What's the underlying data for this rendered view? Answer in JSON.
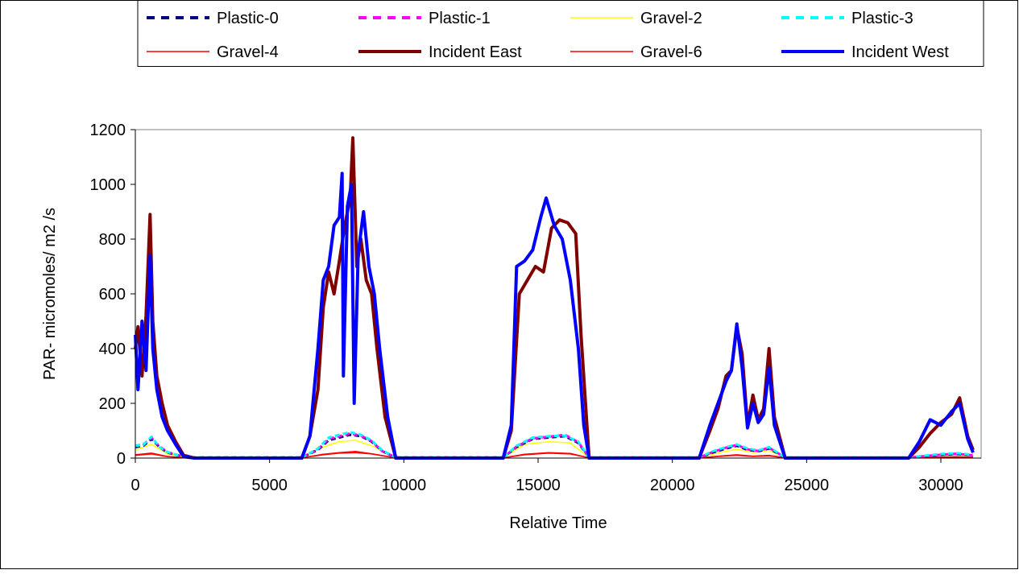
{
  "chart_data": {
    "type": "line",
    "title": "",
    "xlabel": "Relative Time",
    "ylabel": "PAR- micromoles/ m2 /s",
    "xlim": [
      0,
      31500
    ],
    "ylim": [
      0,
      1200
    ],
    "xticks": [
      0,
      5000,
      10000,
      15000,
      20000,
      25000,
      30000
    ],
    "yticks": [
      0,
      200,
      400,
      600,
      800,
      1000,
      1200
    ],
    "xtick_labels": [
      "0",
      "5000",
      "10000",
      "15000",
      "20000",
      "25000",
      "30000"
    ],
    "ytick_labels": [
      "0",
      "200",
      "400",
      "600",
      "800",
      "1000",
      "1200"
    ],
    "grid": false,
    "legend_position": "top",
    "series": [
      {
        "name": "Plastic-0",
        "color": "#000080",
        "style": "dashed",
        "x": [
          0,
          300,
          600,
          900,
          1200,
          1600,
          2000,
          6200,
          6800,
          7200,
          7600,
          8000,
          8400,
          8800,
          9200,
          9700,
          13700,
          14200,
          14800,
          15400,
          16000,
          16500,
          16900,
          21000,
          21500,
          22000,
          22400,
          22800,
          23200,
          23600,
          24200,
          28800,
          29500,
          30000,
          30600,
          31200
        ],
        "y": [
          40,
          45,
          70,
          40,
          20,
          10,
          2,
          2,
          30,
          65,
          75,
          85,
          80,
          60,
          25,
          2,
          2,
          40,
          70,
          75,
          80,
          55,
          2,
          2,
          20,
          35,
          45,
          30,
          25,
          35,
          2,
          2,
          8,
          12,
          15,
          10
        ]
      },
      {
        "name": "Plastic-1",
        "color": "#FF00FF",
        "style": "dashed",
        "x": [
          0,
          300,
          600,
          900,
          1200,
          1600,
          2000,
          6200,
          6800,
          7200,
          7600,
          8000,
          8400,
          8800,
          9200,
          9700,
          13700,
          14200,
          14800,
          15400,
          16000,
          16500,
          16900,
          21000,
          21500,
          22000,
          22400,
          22800,
          23200,
          23600,
          24200,
          28800,
          29500,
          30000,
          30600,
          31200
        ],
        "y": [
          45,
          50,
          75,
          42,
          22,
          10,
          2,
          2,
          32,
          70,
          80,
          90,
          82,
          62,
          25,
          2,
          2,
          42,
          72,
          78,
          85,
          58,
          2,
          2,
          22,
          38,
          48,
          32,
          26,
          38,
          2,
          2,
          8,
          12,
          16,
          10
        ]
      },
      {
        "name": "Gravel-2",
        "color": "#FFFF00",
        "style": "solid",
        "x": [
          0,
          600,
          1200,
          2000,
          6200,
          7000,
          7600,
          8200,
          8800,
          9700,
          13700,
          14500,
          15400,
          16200,
          16900,
          21000,
          22000,
          22400,
          23000,
          23600,
          24200,
          28800,
          30000,
          30600,
          31200
        ],
        "y": [
          30,
          50,
          15,
          2,
          2,
          40,
          60,
          65,
          45,
          2,
          2,
          50,
          60,
          55,
          2,
          2,
          25,
          32,
          20,
          28,
          2,
          2,
          10,
          12,
          8
        ]
      },
      {
        "name": "Plastic-3",
        "color": "#00FFFF",
        "style": "dashed",
        "x": [
          0,
          300,
          600,
          900,
          1200,
          1600,
          2000,
          6200,
          6800,
          7200,
          7600,
          8000,
          8400,
          8800,
          9200,
          9700,
          13700,
          14200,
          14800,
          15400,
          16000,
          16500,
          16900,
          21000,
          21500,
          22000,
          22400,
          22800,
          23200,
          23600,
          24200,
          28800,
          29500,
          30000,
          30600,
          31200
        ],
        "y": [
          45,
          48,
          78,
          40,
          22,
          10,
          2,
          2,
          35,
          75,
          85,
          95,
          85,
          65,
          28,
          2,
          2,
          45,
          75,
          80,
          82,
          60,
          2,
          2,
          25,
          40,
          50,
          35,
          28,
          40,
          2,
          2,
          10,
          15,
          18,
          12
        ]
      },
      {
        "name": "Gravel-4",
        "color": "#FF0000",
        "style": "solid",
        "x": [
          0,
          600,
          1200,
          2000,
          6200,
          7000,
          7600,
          8200,
          8800,
          9700,
          13700,
          14500,
          15400,
          16200,
          16900,
          21000,
          22000,
          22400,
          23000,
          23600,
          24200,
          28800,
          30000,
          30600,
          31200
        ],
        "y": [
          10,
          15,
          5,
          1,
          1,
          12,
          18,
          20,
          15,
          1,
          1,
          12,
          18,
          15,
          1,
          1,
          8,
          10,
          6,
          8,
          1,
          1,
          3,
          4,
          3
        ]
      },
      {
        "name": "Incident East",
        "color": "#800000",
        "style": "solid",
        "x": [
          0,
          100,
          250,
          400,
          550,
          650,
          800,
          1000,
          1200,
          1500,
          1800,
          2200,
          6200,
          6500,
          6800,
          7000,
          7200,
          7400,
          7600,
          7800,
          8000,
          8100,
          8250,
          8400,
          8600,
          8800,
          9000,
          9300,
          9700,
          13700,
          14000,
          14300,
          14600,
          14900,
          15200,
          15500,
          15800,
          16100,
          16400,
          16600,
          16900,
          21000,
          21400,
          21700,
          22000,
          22200,
          22400,
          22600,
          22800,
          23000,
          23200,
          23400,
          23600,
          23800,
          24200,
          28800,
          29200,
          29600,
          30000,
          30400,
          30700,
          31000,
          31200
        ],
        "y": [
          400,
          480,
          300,
          520,
          890,
          500,
          300,
          200,
          120,
          60,
          10,
          0,
          0,
          80,
          250,
          550,
          680,
          600,
          720,
          850,
          950,
          1170,
          700,
          800,
          650,
          600,
          400,
          150,
          0,
          0,
          100,
          600,
          650,
          700,
          680,
          840,
          870,
          860,
          820,
          450,
          0,
          0,
          100,
          180,
          300,
          320,
          480,
          380,
          120,
          230,
          140,
          180,
          400,
          150,
          0,
          0,
          40,
          90,
          130,
          160,
          220,
          80,
          30
        ]
      },
      {
        "name": "Gravel-6",
        "color": "#FF0000",
        "style": "solid",
        "x": [
          0,
          600,
          1200,
          2000,
          6200,
          7000,
          7600,
          8200,
          8800,
          9700,
          13700,
          14500,
          15400,
          16200,
          16900,
          21000,
          22000,
          22400,
          23000,
          23600,
          24200,
          28800,
          30000,
          30600,
          31200
        ],
        "y": [
          12,
          18,
          6,
          1,
          1,
          14,
          20,
          24,
          16,
          1,
          1,
          14,
          20,
          17,
          1,
          1,
          9,
          12,
          7,
          10,
          1,
          1,
          4,
          5,
          3
        ]
      },
      {
        "name": "Incident West",
        "color": "#0000FF",
        "style": "solid",
        "x": [
          0,
          100,
          250,
          400,
          550,
          650,
          800,
          1000,
          1200,
          1500,
          1800,
          2200,
          6200,
          6500,
          6800,
          7000,
          7200,
          7400,
          7600,
          7700,
          7750,
          7900,
          8050,
          8150,
          8300,
          8500,
          8700,
          8900,
          9100,
          9400,
          9700,
          13700,
          14000,
          14200,
          14500,
          14800,
          15100,
          15300,
          15600,
          15900,
          16200,
          16500,
          16700,
          16900,
          21000,
          21400,
          21700,
          22000,
          22200,
          22400,
          22600,
          22800,
          23000,
          23200,
          23400,
          23600,
          23800,
          24200,
          28800,
          29200,
          29600,
          30000,
          30400,
          30700,
          31000,
          31200
        ],
        "y": [
          450,
          250,
          500,
          320,
          740,
          400,
          250,
          150,
          100,
          50,
          5,
          0,
          0,
          80,
          400,
          650,
          700,
          850,
          880,
          1040,
          300,
          920,
          1000,
          200,
          750,
          900,
          700,
          600,
          400,
          150,
          0,
          0,
          120,
          700,
          720,
          760,
          880,
          950,
          850,
          800,
          650,
          400,
          120,
          0,
          0,
          120,
          200,
          280,
          320,
          490,
          330,
          110,
          200,
          130,
          160,
          330,
          120,
          0,
          0,
          60,
          140,
          120,
          170,
          200,
          70,
          20
        ]
      }
    ]
  }
}
